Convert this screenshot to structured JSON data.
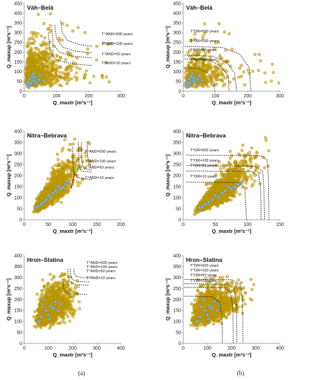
{
  "figure": {
    "panel_labels": [
      "(a)",
      "(b)"
    ],
    "colors": {
      "scatter": "#c9a200",
      "scatter_edge": "#b08c00",
      "observed": "#7fb4e0",
      "observed_edge": "#4a86b8",
      "curve": "#222222",
      "highlight_red": "#d62020",
      "highlight_green": "#30a030"
    }
  },
  "chart_data": [
    {
      "type": "scatter",
      "id": "a1",
      "column": "a",
      "row": 0,
      "title": "Váh–Belá",
      "xlabel": "Q_maxtr [m³s⁻¹]",
      "ylabel": "Q_maxup [m³s⁻¹]",
      "xlim": [
        0,
        300
      ],
      "ylim": [
        0,
        450
      ],
      "xticks": [
        0,
        100,
        200,
        300
      ],
      "yticks": [
        0,
        50,
        100,
        150,
        200,
        250,
        300,
        350,
        400,
        450
      ],
      "cloud": {
        "n": 850,
        "x_median": 38,
        "y_median": 95,
        "x_max": 280,
        "y_max": 400,
        "corr": 0.15
      },
      "observed": [
        [
          22,
          42
        ],
        [
          30,
          55
        ],
        [
          15,
          30
        ],
        [
          45,
          60
        ],
        [
          25,
          75
        ],
        [
          35,
          48
        ],
        [
          12,
          45
        ],
        [
          18,
          62
        ],
        [
          40,
          35
        ],
        [
          28,
          90
        ],
        [
          10,
          25
        ],
        [
          50,
          80
        ],
        [
          20,
          38
        ],
        [
          33,
          70
        ],
        [
          60,
          55
        ]
      ],
      "return_periods": [
        {
          "label": "T^AND=500 years",
          "points": [
            [
              113,
              361
            ],
            [
              118,
              300
            ],
            [
              135,
              260
            ],
            [
              170,
              240
            ],
            [
              210,
              230
            ]
          ]
        },
        {
          "label": "T^AND=100 years",
          "points": [
            [
              95,
              340
            ],
            [
              100,
              270
            ],
            [
              120,
              225
            ],
            [
              160,
              205
            ],
            [
              210,
              197
            ]
          ]
        },
        {
          "label": "T^AND=50 years",
          "points": [
            [
              85,
              320
            ],
            [
              90,
              240
            ],
            [
              110,
              200
            ],
            [
              155,
              178
            ],
            [
              210,
              172
            ]
          ]
        },
        {
          "label": "T^AND=10 years",
          "points": [
            [
              75,
              300
            ],
            [
              80,
              200
            ],
            [
              100,
              160
            ],
            [
              150,
              140
            ],
            [
              210,
              132
            ]
          ]
        }
      ]
    },
    {
      "type": "scatter",
      "id": "b1",
      "column": "b",
      "row": 0,
      "title": "Váh–Belá",
      "xlabel": "Q_maxtr [m³s⁻¹]",
      "ylabel": "Q_maxup [m³s⁻¹]",
      "xlim": [
        0,
        300
      ],
      "ylim": [
        0,
        450
      ],
      "xticks": [
        0,
        100,
        200,
        300
      ],
      "yticks": [
        0,
        50,
        100,
        150,
        200,
        250,
        300,
        350,
        400,
        450
      ],
      "cloud": {
        "n": 450,
        "x_median": 48,
        "y_median": 85,
        "x_max": 320,
        "y_max": 360,
        "corr": 0.2
      },
      "observed": [
        [
          22,
          42
        ],
        [
          30,
          55
        ],
        [
          15,
          30
        ],
        [
          45,
          60
        ],
        [
          25,
          75
        ],
        [
          35,
          48
        ],
        [
          12,
          45
        ],
        [
          18,
          62
        ],
        [
          40,
          35
        ],
        [
          28,
          90
        ],
        [
          10,
          25
        ],
        [
          50,
          80
        ],
        [
          20,
          38
        ],
        [
          33,
          70
        ],
        [
          60,
          55
        ]
      ],
      "return_periods": [
        {
          "label": "T^OR=500 years",
          "points": [
            [
              5,
              230
            ],
            [
              120,
              225
            ],
            [
              175,
              190
            ],
            [
              205,
              120
            ],
            [
              210,
              0
            ]
          ]
        },
        {
          "label": "T^OR=100 years",
          "points": [
            [
              5,
              185
            ],
            [
              90,
              180
            ],
            [
              135,
              150
            ],
            [
              160,
              90
            ],
            [
              165,
              0
            ]
          ]
        },
        {
          "label": "T^OR=50 years",
          "points": [
            [
              5,
              165
            ],
            [
              80,
              160
            ],
            [
              115,
              130
            ],
            [
              140,
              75
            ],
            [
              142,
              0
            ]
          ]
        },
        {
          "label": "T^OR=10 years",
          "points": [
            [
              5,
              120
            ],
            [
              50,
              115
            ],
            [
              80,
              90
            ],
            [
              95,
              45
            ],
            [
              98,
              0
            ]
          ]
        }
      ]
    },
    {
      "type": "scatter",
      "id": "a2",
      "column": "a",
      "row": 1,
      "title": "Nitra–Bebrava",
      "xlabel": "Q_maxtr [m³s⁻¹]",
      "ylabel": "Q_maxup [m³s⁻¹]",
      "xlim": [
        0,
        200
      ],
      "ylim": [
        0,
        400
      ],
      "xticks": [
        0,
        50,
        100,
        150,
        200
      ],
      "yticks": [
        0,
        50,
        100,
        150,
        200,
        250,
        300,
        350,
        400
      ],
      "cloud": {
        "n": 1300,
        "x_median": 55,
        "y_median": 120,
        "x_max": 140,
        "y_max": 370,
        "corr": 0.85
      },
      "observed": [
        [
          30,
          60
        ],
        [
          45,
          90
        ],
        [
          60,
          120
        ],
        [
          55,
          100
        ],
        [
          75,
          140
        ],
        [
          40,
          80
        ],
        [
          65,
          130
        ],
        [
          85,
          160
        ],
        [
          50,
          110
        ],
        [
          35,
          70
        ],
        [
          70,
          150
        ],
        [
          90,
          170
        ],
        [
          80,
          145
        ],
        [
          25,
          55
        ]
      ],
      "return_periods": [
        {
          "label": "T^AND=500 years",
          "points": [
            [
              130,
              350
            ],
            [
              131,
              290
            ],
            [
              133,
              265
            ],
            [
              135,
              250
            ],
            [
              140,
              245
            ]
          ]
        },
        {
          "label": "T^AND=100 years",
          "points": [
            [
              118,
              350
            ],
            [
              119,
              270
            ],
            [
              121,
              245
            ],
            [
              125,
              230
            ],
            [
              140,
              225
            ]
          ]
        },
        {
          "label": "T^AND=50 years",
          "points": [
            [
              112,
              350
            ],
            [
              113,
              260
            ],
            [
              115,
              235
            ],
            [
              118,
              220
            ],
            [
              140,
              215
            ]
          ]
        },
        {
          "label": "T^AND=10 years",
          "points": [
            [
              100,
              330
            ],
            [
              101,
              240
            ],
            [
              104,
              210
            ],
            [
              110,
              190
            ],
            [
              140,
              180
            ]
          ]
        }
      ]
    },
    {
      "type": "scatter",
      "id": "b2",
      "column": "b",
      "row": 1,
      "title": "Nitra–Bebrava",
      "xlabel": "Q_maxtr [m³s⁻¹]",
      "ylabel": "Q_maxup [m³s⁻¹]",
      "xlim": [
        0,
        150
      ],
      "ylim": [
        0,
        400
      ],
      "xticks": [
        0,
        50,
        100,
        150
      ],
      "yticks": [
        0,
        50,
        100,
        150,
        200,
        250,
        300,
        350,
        400
      ],
      "cloud": {
        "n": 1300,
        "x_median": 55,
        "y_median": 120,
        "x_max": 140,
        "y_max": 380,
        "corr": 0.85
      },
      "observed": [
        [
          30,
          60
        ],
        [
          45,
          90
        ],
        [
          60,
          120
        ],
        [
          55,
          100
        ],
        [
          75,
          140
        ],
        [
          40,
          80
        ],
        [
          65,
          130
        ],
        [
          85,
          160
        ],
        [
          50,
          110
        ],
        [
          35,
          70
        ],
        [
          70,
          150
        ],
        [
          90,
          170
        ],
        [
          80,
          145
        ],
        [
          25,
          55
        ]
      ],
      "return_periods": [
        {
          "label": "T^OR=500 years",
          "points": [
            [
              5,
              292
            ],
            [
              120,
              290
            ],
            [
              130,
              270
            ],
            [
              132,
              200
            ],
            [
              133,
              0
            ]
          ]
        },
        {
          "label": "T^OR=100 years",
          "points": [
            [
              5,
              245
            ],
            [
              110,
              242
            ],
            [
              123,
              220
            ],
            [
              125,
              150
            ],
            [
              126,
              0
            ]
          ]
        },
        {
          "label": "T^OR=50 years",
          "points": [
            [
              5,
              220
            ],
            [
              105,
              218
            ],
            [
              118,
              195
            ],
            [
              120,
              130
            ],
            [
              121,
              0
            ]
          ]
        },
        {
          "label": "T^OR=10 years",
          "points": [
            [
              5,
              170
            ],
            [
              85,
              168
            ],
            [
              95,
              150
            ],
            [
              97,
              80
            ],
            [
              98,
              0
            ]
          ]
        }
      ]
    },
    {
      "type": "scatter",
      "id": "a3",
      "column": "a",
      "row": 2,
      "title": "Hron–Slatina",
      "xlabel": "Q_maxtr [m³s⁻¹]",
      "ylabel": "Q_maxup [m³s⁻¹]",
      "xlim": [
        0,
        400
      ],
      "ylim": [
        0,
        400
      ],
      "xticks": [
        0,
        100,
        200,
        300,
        400
      ],
      "yticks": [
        0,
        50,
        100,
        150,
        200,
        250,
        300,
        350,
        400
      ],
      "cloud": {
        "n": 1400,
        "x_median": 110,
        "y_median": 160,
        "x_max": 240,
        "y_max": 320,
        "corr": 0.45
      },
      "observed": [
        [
          90,
          150
        ],
        [
          110,
          170
        ],
        [
          70,
          120
        ],
        [
          130,
          190
        ],
        [
          100,
          130
        ],
        [
          60,
          100
        ],
        [
          120,
          160
        ],
        [
          85,
          200
        ],
        [
          140,
          150
        ],
        [
          75,
          165
        ],
        [
          105,
          110
        ],
        [
          150,
          180
        ]
      ],
      "return_periods": [
        {
          "label": "T^AND=500 years",
          "points": [
            [
              205,
              340
            ],
            [
              207,
              320
            ],
            [
              215,
              305
            ],
            [
              240,
              300
            ],
            [
              270,
              298
            ]
          ]
        },
        {
          "label": "T^AND=100 years",
          "points": [
            [
              190,
              340
            ],
            [
              192,
              310
            ],
            [
              200,
              290
            ],
            [
              225,
              282
            ],
            [
              270,
              280
            ]
          ]
        },
        {
          "label": "T^AND=50 years",
          "points": [
            [
              180,
              340
            ],
            [
              182,
              300
            ],
            [
              190,
              280
            ],
            [
              215,
              268
            ],
            [
              270,
              265
            ]
          ]
        },
        {
          "label": "T^AND=10 years",
          "points": [
            [
              160,
              280
            ],
            [
              162,
              255
            ],
            [
              175,
              232
            ],
            [
              205,
              225
            ],
            [
              260,
              223
            ]
          ]
        }
      ]
    },
    {
      "type": "scatter",
      "id": "b3",
      "column": "b",
      "row": 2,
      "title": "Hron–Slatina",
      "xlabel": "Q_maxtr [m³s⁻¹]",
      "ylabel": "Q_maxup [m³s⁻¹]",
      "xlim": [
        0,
        400
      ],
      "ylim": [
        0,
        400
      ],
      "xticks": [
        0,
        100,
        200,
        300,
        400
      ],
      "yticks": [
        0,
        50,
        100,
        150,
        200,
        250,
        300,
        350,
        400
      ],
      "cloud": {
        "n": 1400,
        "x_median": 110,
        "y_median": 160,
        "x_max": 300,
        "y_max": 310,
        "corr": 0.45
      },
      "observed": [
        [
          90,
          150
        ],
        [
          110,
          170
        ],
        [
          70,
          120
        ],
        [
          130,
          190
        ],
        [
          100,
          130
        ],
        [
          60,
          100
        ],
        [
          120,
          160
        ],
        [
          85,
          200
        ],
        [
          140,
          150
        ],
        [
          75,
          165
        ],
        [
          105,
          110
        ],
        [
          150,
          180
        ]
      ],
      "return_periods": [
        {
          "label": "T^OR=500 years",
          "points": [
            [
              5,
              292
            ],
            [
              200,
              290
            ],
            [
              235,
              270
            ],
            [
              245,
              200
            ],
            [
              247,
              0
            ]
          ]
        },
        {
          "label": "T^OR=100 years",
          "points": [
            [
              5,
              272
            ],
            [
              180,
              270
            ],
            [
              210,
              250
            ],
            [
              220,
              180
            ],
            [
              222,
              0
            ]
          ]
        },
        {
          "label": "T^OR=50 years",
          "points": [
            [
              5,
              255
            ],
            [
              170,
              253
            ],
            [
              195,
              235
            ],
            [
              205,
              165
            ],
            [
              207,
              0
            ]
          ]
        },
        {
          "label": "T^OR=10 years",
          "points": [
            [
              5,
              215
            ],
            [
              120,
              212
            ],
            [
              150,
              190
            ],
            [
              160,
              130
            ],
            [
              162,
              0
            ]
          ]
        }
      ]
    }
  ]
}
